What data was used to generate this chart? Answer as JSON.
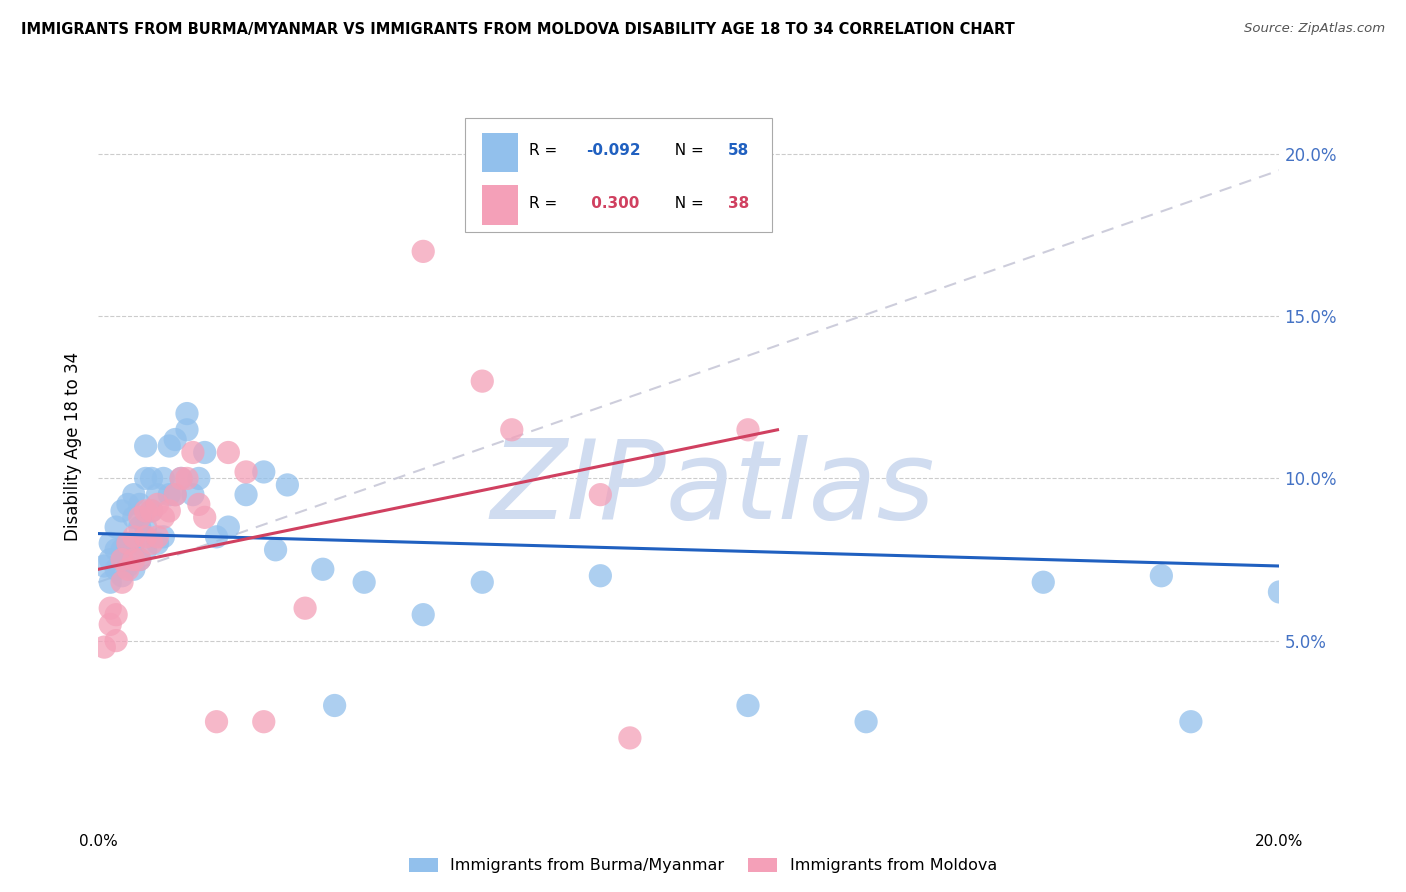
{
  "title": "IMMIGRANTS FROM BURMA/MYANMAR VS IMMIGRANTS FROM MOLDOVA DISABILITY AGE 18 TO 34 CORRELATION CHART",
  "source": "Source: ZipAtlas.com",
  "ylabel": "Disability Age 18 to 34",
  "right_yticks": [
    "20.0%",
    "15.0%",
    "10.0%",
    "5.0%"
  ],
  "right_ytick_vals": [
    0.2,
    0.15,
    0.1,
    0.05
  ],
  "xlim": [
    0.0,
    0.2
  ],
  "ylim": [
    0.0,
    0.22
  ],
  "label_blue": "Immigrants from Burma/Myanmar",
  "label_pink": "Immigrants from Moldova",
  "blue_color": "#92C0EC",
  "pink_color": "#F4A0B8",
  "blue_line_color": "#2060C0",
  "pink_line_color": "#D04060",
  "dash_color": "#C8C8D8",
  "watermark_color": "#D0DCF0",
  "watermark": "ZIPatlas",
  "grid_color": "#CCCCCC",
  "background_color": "#FFFFFF",
  "legend_R_blue": "-0.092",
  "legend_N_blue": "58",
  "legend_R_pink": "0.300",
  "legend_N_pink": "38",
  "blue_scatter_x": [
    0.001,
    0.002,
    0.002,
    0.002,
    0.003,
    0.003,
    0.003,
    0.004,
    0.004,
    0.004,
    0.005,
    0.005,
    0.005,
    0.006,
    0.006,
    0.006,
    0.006,
    0.007,
    0.007,
    0.007,
    0.008,
    0.008,
    0.008,
    0.008,
    0.009,
    0.009,
    0.01,
    0.01,
    0.011,
    0.011,
    0.012,
    0.012,
    0.013,
    0.013,
    0.014,
    0.015,
    0.015,
    0.016,
    0.017,
    0.018,
    0.02,
    0.022,
    0.025,
    0.028,
    0.03,
    0.032,
    0.038,
    0.04,
    0.045,
    0.055,
    0.065,
    0.085,
    0.11,
    0.13,
    0.16,
    0.18,
    0.185,
    0.2
  ],
  "blue_scatter_y": [
    0.073,
    0.068,
    0.075,
    0.08,
    0.072,
    0.078,
    0.085,
    0.07,
    0.078,
    0.09,
    0.073,
    0.08,
    0.092,
    0.072,
    0.08,
    0.088,
    0.095,
    0.075,
    0.085,
    0.092,
    0.078,
    0.085,
    0.1,
    0.11,
    0.09,
    0.1,
    0.08,
    0.095,
    0.082,
    0.1,
    0.095,
    0.11,
    0.095,
    0.112,
    0.1,
    0.115,
    0.12,
    0.095,
    0.1,
    0.108,
    0.082,
    0.085,
    0.095,
    0.102,
    0.078,
    0.098,
    0.072,
    0.03,
    0.068,
    0.058,
    0.068,
    0.07,
    0.03,
    0.025,
    0.068,
    0.07,
    0.025,
    0.065
  ],
  "pink_scatter_x": [
    0.001,
    0.002,
    0.002,
    0.003,
    0.003,
    0.004,
    0.004,
    0.005,
    0.005,
    0.006,
    0.006,
    0.007,
    0.007,
    0.008,
    0.008,
    0.009,
    0.009,
    0.01,
    0.01,
    0.011,
    0.012,
    0.013,
    0.014,
    0.015,
    0.016,
    0.017,
    0.018,
    0.02,
    0.022,
    0.025,
    0.028,
    0.035,
    0.055,
    0.065,
    0.07,
    0.085,
    0.09,
    0.11
  ],
  "pink_scatter_y": [
    0.048,
    0.055,
    0.06,
    0.05,
    0.058,
    0.068,
    0.075,
    0.072,
    0.08,
    0.075,
    0.082,
    0.075,
    0.088,
    0.082,
    0.09,
    0.08,
    0.09,
    0.082,
    0.092,
    0.088,
    0.09,
    0.095,
    0.1,
    0.1,
    0.108,
    0.092,
    0.088,
    0.025,
    0.108,
    0.102,
    0.025,
    0.06,
    0.17,
    0.13,
    0.115,
    0.095,
    0.02,
    0.115
  ],
  "blue_line_x0": 0.0,
  "blue_line_x1": 0.2,
  "blue_line_y0": 0.083,
  "blue_line_y1": 0.073,
  "pink_line_x0": 0.0,
  "pink_line_x1": 0.115,
  "pink_line_y0": 0.072,
  "pink_line_y1": 0.115,
  "dash_line_x0": 0.0,
  "dash_line_x1": 0.2,
  "dash_line_y0": 0.068,
  "dash_line_y1": 0.195
}
